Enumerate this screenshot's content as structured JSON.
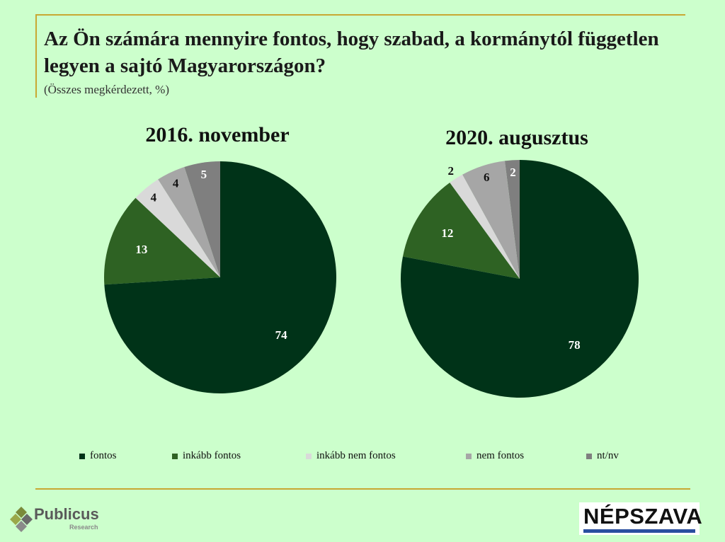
{
  "header": {
    "title": "Az Ön számára mennyire fontos, hogy szabad, a kormánytól független legyen a sajtó Magyarországon?",
    "subtitle": "(Összes megkérdezett, %)"
  },
  "chart_data": [
    {
      "type": "pie",
      "title": "2016. november",
      "categories": [
        "fontos",
        "inkább fontos",
        "inkább nem fontos",
        "nem fontos",
        "nt/nv"
      ],
      "values": [
        74,
        13,
        4,
        4,
        5
      ]
    },
    {
      "type": "pie",
      "title": "2020. augusztus",
      "categories": [
        "fontos",
        "inkább fontos",
        "inkább nem fontos",
        "nem fontos",
        "nt/nv"
      ],
      "values": [
        78,
        12,
        2,
        6,
        2
      ]
    }
  ],
  "colors": [
    "#003318",
    "#2e6223",
    "#d9d9d9",
    "#a6a6a6",
    "#7f7f7f"
  ],
  "label_colors": [
    "#ffffff",
    "#ffffff",
    "#111111",
    "#111111",
    "#ffffff"
  ],
  "legend": {
    "items": [
      "fontos",
      "inkább fontos",
      "inkább nem fontos",
      "nem fontos",
      "nt/nv"
    ],
    "position": "bottom"
  },
  "footer": {
    "logo_left_name": "Publicus",
    "logo_left_sub": "Research",
    "logo_right_name": "NÉPSZAVA"
  }
}
